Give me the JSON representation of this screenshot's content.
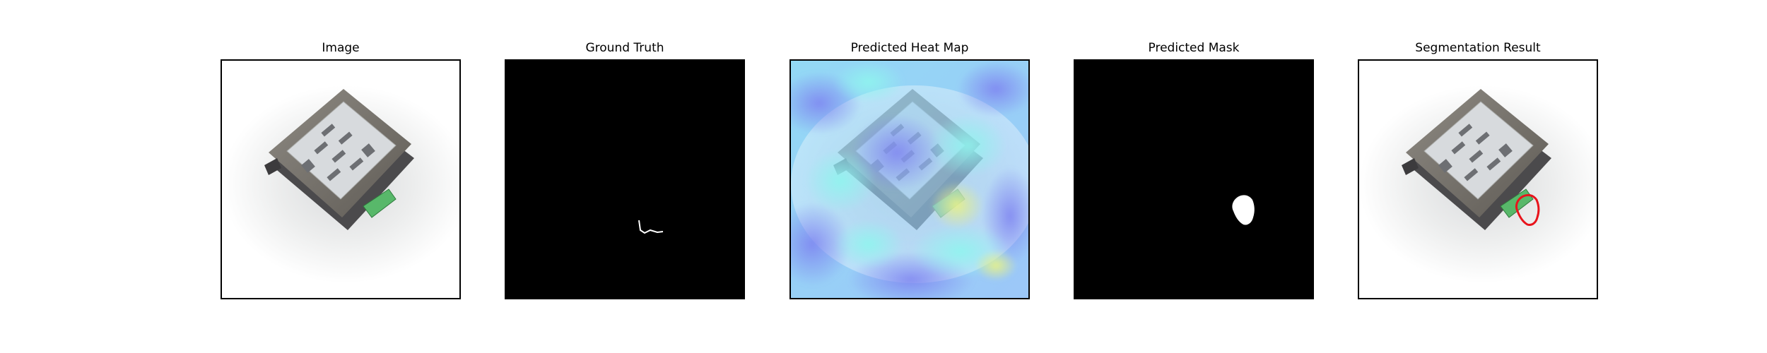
{
  "panels": [
    {
      "title": "Image"
    },
    {
      "title": "Ground Truth"
    },
    {
      "title": "Predicted Heat Map"
    },
    {
      "title": "Predicted Mask"
    },
    {
      "title": "Segmentation Result"
    }
  ],
  "colors": {
    "mask_background": "#000000",
    "mask_foreground": "#ffffff",
    "contour": "#e8141c",
    "heat_low": "#7fb0ff",
    "heat_mid": "#8ff5ee",
    "heat_high": "#e6f08a"
  }
}
